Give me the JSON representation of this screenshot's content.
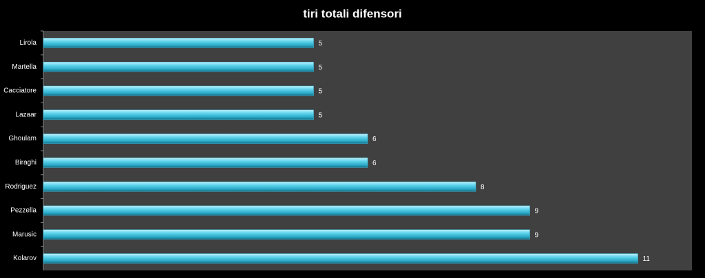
{
  "chart_data": {
    "type": "bar",
    "orientation": "horizontal",
    "title": "tiri totali difensori",
    "categories": [
      "Lirola",
      "Martella",
      "Cacciatore",
      "Lazaar",
      "Ghoulam",
      "Biraghi",
      "Rodriguez",
      "Pezzella",
      "Marusic",
      "Kolarov"
    ],
    "values": [
      5,
      5,
      5,
      5,
      6,
      6,
      8,
      9,
      9,
      11
    ],
    "color": "#3fc1dc",
    "xlim": [
      0,
      12
    ]
  }
}
